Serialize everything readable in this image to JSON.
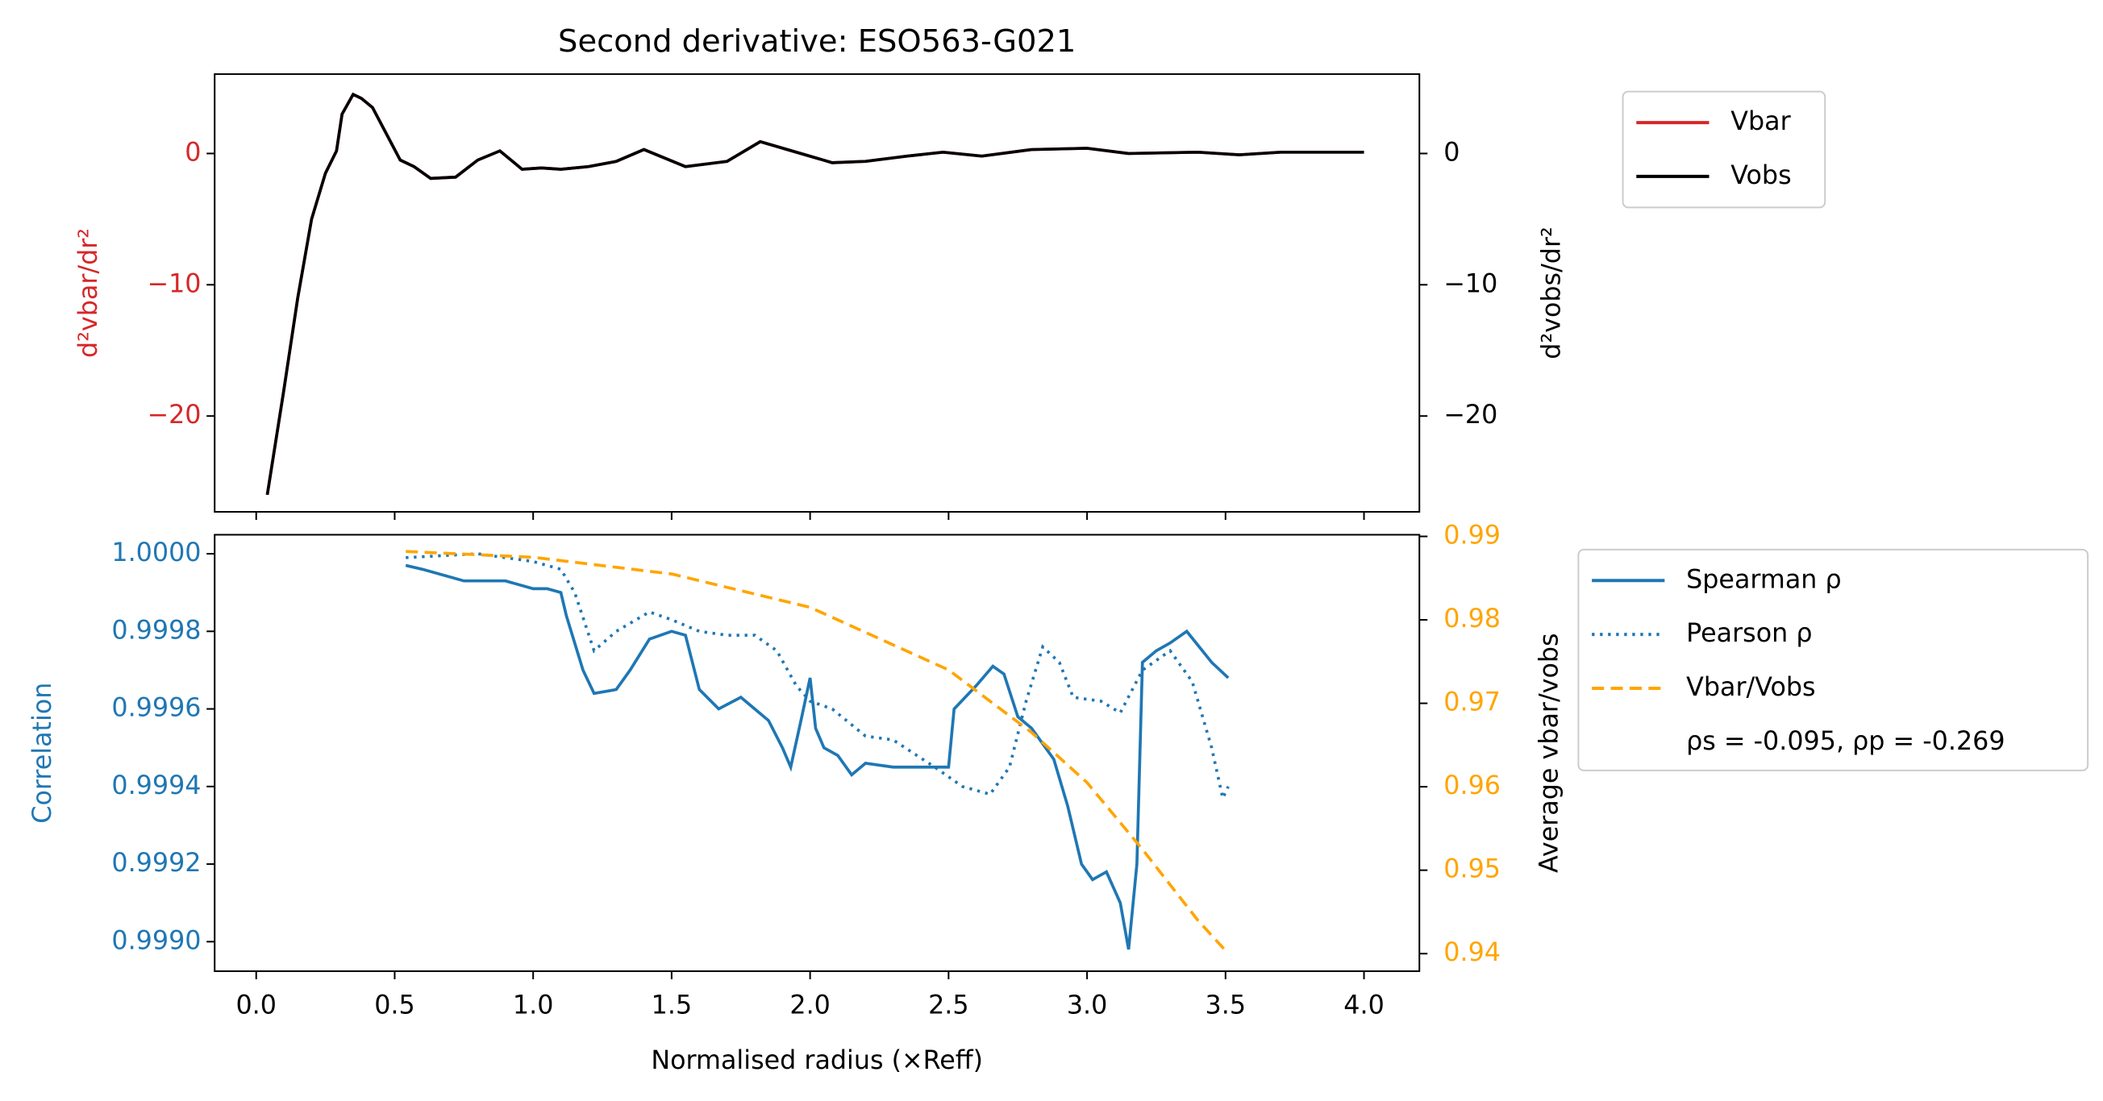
{
  "chart_data": [
    {
      "type": "line",
      "title": "Second derivative: ESO563-G021",
      "ylabel": "d²vbar/dr²",
      "y2label": "d²vobs/dr²",
      "y_color": "#d62728",
      "y2_color": "#000000",
      "xlim": [
        -0.15,
        4.2
      ],
      "xticks": [
        0,
        0.5,
        1,
        1.5,
        2,
        2.5,
        3,
        3.5,
        4
      ],
      "ylim": [
        -27.3,
        6.05
      ],
      "yticks": [
        {
          "value": -20,
          "label": "−20"
        },
        {
          "value": -10,
          "label": "−10"
        },
        0
      ],
      "y2lim": [
        -27.3,
        6.05
      ],
      "y2ticks": [
        {
          "value": -20,
          "label": "−20"
        },
        {
          "value": -10,
          "label": "−10"
        },
        0
      ],
      "legend": "outside-upper-right",
      "series": [
        {
          "name": "Vbar",
          "color": "#d62728",
          "linestyle": "solid",
          "axis": "y",
          "x": [
            0.04,
            0.1,
            0.15,
            0.2,
            0.25,
            0.29,
            0.31,
            0.35,
            0.38,
            0.42,
            0.47,
            0.52,
            0.57,
            0.63,
            0.72,
            0.8,
            0.88,
            0.96,
            1.03,
            1.1,
            1.2,
            1.3,
            1.4,
            1.55,
            1.7,
            1.82,
            1.95,
            2.08,
            2.2,
            2.35,
            2.48,
            2.62,
            2.8,
            3.0,
            3.15,
            3.4,
            3.55,
            3.7,
            4.0
          ],
          "values": [
            -26,
            -18,
            -11,
            -5,
            -1.5,
            0.2,
            3,
            4.5,
            4.2,
            3.5,
            1.5,
            -0.5,
            -1,
            -1.9,
            -1.8,
            -0.5,
            0.2,
            -1.2,
            -1.1,
            -1.2,
            -1,
            -0.6,
            0.3,
            -1,
            -0.6,
            0.9,
            0.1,
            -0.7,
            -0.6,
            -0.2,
            0.1,
            -0.2,
            0.3,
            0.4,
            0,
            0.1,
            -0.1,
            0.1,
            0.1
          ]
        },
        {
          "name": "Vobs",
          "color": "#000000",
          "linestyle": "solid",
          "axis": "y2",
          "x": [
            0.04,
            0.1,
            0.15,
            0.2,
            0.25,
            0.29,
            0.31,
            0.35,
            0.38,
            0.42,
            0.47,
            0.52,
            0.57,
            0.63,
            0.72,
            0.8,
            0.88,
            0.96,
            1.03,
            1.1,
            1.2,
            1.3,
            1.4,
            1.55,
            1.7,
            1.82,
            1.95,
            2.08,
            2.2,
            2.35,
            2.48,
            2.62,
            2.8,
            3.0,
            3.15,
            3.4,
            3.55,
            3.7,
            4.0
          ],
          "values": [
            -26,
            -18,
            -11,
            -5,
            -1.5,
            0.2,
            3,
            4.5,
            4.2,
            3.5,
            1.5,
            -0.5,
            -1,
            -1.9,
            -1.8,
            -0.5,
            0.2,
            -1.2,
            -1.1,
            -1.2,
            -1,
            -0.6,
            0.3,
            -1,
            -0.6,
            0.9,
            0.1,
            -0.7,
            -0.6,
            -0.2,
            0.1,
            -0.2,
            0.3,
            0.4,
            0,
            0.1,
            -0.1,
            0.1,
            0.1
          ]
        }
      ]
    },
    {
      "type": "line",
      "xlabel": "Normalised radius (×Reff)",
      "ylabel": "Correlation",
      "y2label": "Average vbar/vobs",
      "y_color": "#1f77b4",
      "y2_color": "#ffa500",
      "xlim": [
        -0.15,
        4.2
      ],
      "xticks": [
        {
          "value": 0,
          "label": "0.0"
        },
        0.5,
        {
          "value": 1,
          "label": "1.0"
        },
        1.5,
        {
          "value": 2,
          "label": "2.0"
        },
        2.5,
        {
          "value": 3,
          "label": "3.0"
        },
        3.5,
        {
          "value": 4,
          "label": "4.0"
        }
      ],
      "ylim": [
        0.998924,
        1.000049
      ],
      "yticks": [
        {
          "value": 0.999,
          "label": "0.9990"
        },
        {
          "value": 0.9992,
          "label": "0.9992"
        },
        {
          "value": 0.9994,
          "label": "0.9994"
        },
        {
          "value": 0.9996,
          "label": "0.9996"
        },
        {
          "value": 0.9998,
          "label": "0.9998"
        },
        {
          "value": 1,
          "label": "1.0000"
        }
      ],
      "y2lim": [
        0.9379,
        0.9902
      ],
      "y2ticks": [
        0.94,
        0.95,
        0.96,
        0.97,
        0.98,
        0.99
      ],
      "legend": "outside-upper-right",
      "annotation": "ρs = -0.095, ρp = -0.269",
      "series": [
        {
          "name": "Spearman ρ",
          "color": "#1f77b4",
          "linestyle": "solid",
          "axis": "y",
          "x": [
            0.54,
            0.6,
            0.7,
            0.75,
            0.9,
            1.0,
            1.05,
            1.1,
            1.12,
            1.18,
            1.22,
            1.3,
            1.35,
            1.42,
            1.5,
            1.55,
            1.6,
            1.67,
            1.75,
            1.8,
            1.85,
            1.9,
            1.93,
            1.97,
            2.0,
            2.02,
            2.05,
            2.1,
            2.15,
            2.2,
            2.3,
            2.5,
            2.52,
            2.6,
            2.66,
            2.7,
            2.75,
            2.8,
            2.88,
            2.93,
            2.98,
            3.02,
            3.07,
            3.12,
            3.15,
            3.18,
            3.2,
            3.25,
            3.3,
            3.36,
            3.45,
            3.51
          ],
          "values": [
            0.99997,
            0.99996,
            0.99994,
            0.99993,
            0.99993,
            0.99991,
            0.99991,
            0.9999,
            0.99984,
            0.9997,
            0.99964,
            0.99965,
            0.9997,
            0.99978,
            0.9998,
            0.99979,
            0.99965,
            0.9996,
            0.99963,
            0.9996,
            0.99957,
            0.9995,
            0.99945,
            0.99958,
            0.99968,
            0.99955,
            0.9995,
            0.99948,
            0.99943,
            0.99946,
            0.99945,
            0.99945,
            0.9996,
            0.99966,
            0.99971,
            0.99969,
            0.99958,
            0.99955,
            0.99947,
            0.99935,
            0.9992,
            0.99916,
            0.99918,
            0.9991,
            0.99898,
            0.9992,
            0.99972,
            0.99975,
            0.99977,
            0.9998,
            0.99972,
            0.99968
          ]
        },
        {
          "name": "Pearson ρ",
          "color": "#1f77b4",
          "linestyle": "dotted",
          "axis": "y",
          "x": [
            0.54,
            0.8,
            1.0,
            1.1,
            1.15,
            1.22,
            1.3,
            1.42,
            1.5,
            1.6,
            1.7,
            1.8,
            1.88,
            1.95,
            2.0,
            2.08,
            2.2,
            2.3,
            2.45,
            2.55,
            2.65,
            2.72,
            2.78,
            2.84,
            2.9,
            2.95,
            3.05,
            3.12,
            3.2,
            3.3,
            3.38,
            3.45,
            3.49,
            3.51
          ],
          "values": [
            0.99999,
            1.0,
            0.99998,
            0.99996,
            0.9999,
            0.99975,
            0.9998,
            0.99985,
            0.99983,
            0.9998,
            0.99979,
            0.99979,
            0.99975,
            0.99966,
            0.99962,
            0.9996,
            0.99953,
            0.99952,
            0.99945,
            0.9994,
            0.99938,
            0.99945,
            0.99962,
            0.99976,
            0.99972,
            0.99963,
            0.99962,
            0.99959,
            0.9997,
            0.99975,
            0.99967,
            0.9995,
            0.99937,
            0.9994
          ]
        },
        {
          "name": "Vbar/Vobs",
          "color": "#ffa500",
          "linestyle": "dashed",
          "axis": "y2",
          "x": [
            0.54,
            1.0,
            1.5,
            2.0,
            2.5,
            2.8,
            3.0,
            3.2,
            3.4,
            3.51
          ],
          "values": [
            0.9882,
            0.9875,
            0.9855,
            0.9815,
            0.974,
            0.9665,
            0.9605,
            0.9525,
            0.944,
            0.94
          ]
        }
      ]
    }
  ]
}
